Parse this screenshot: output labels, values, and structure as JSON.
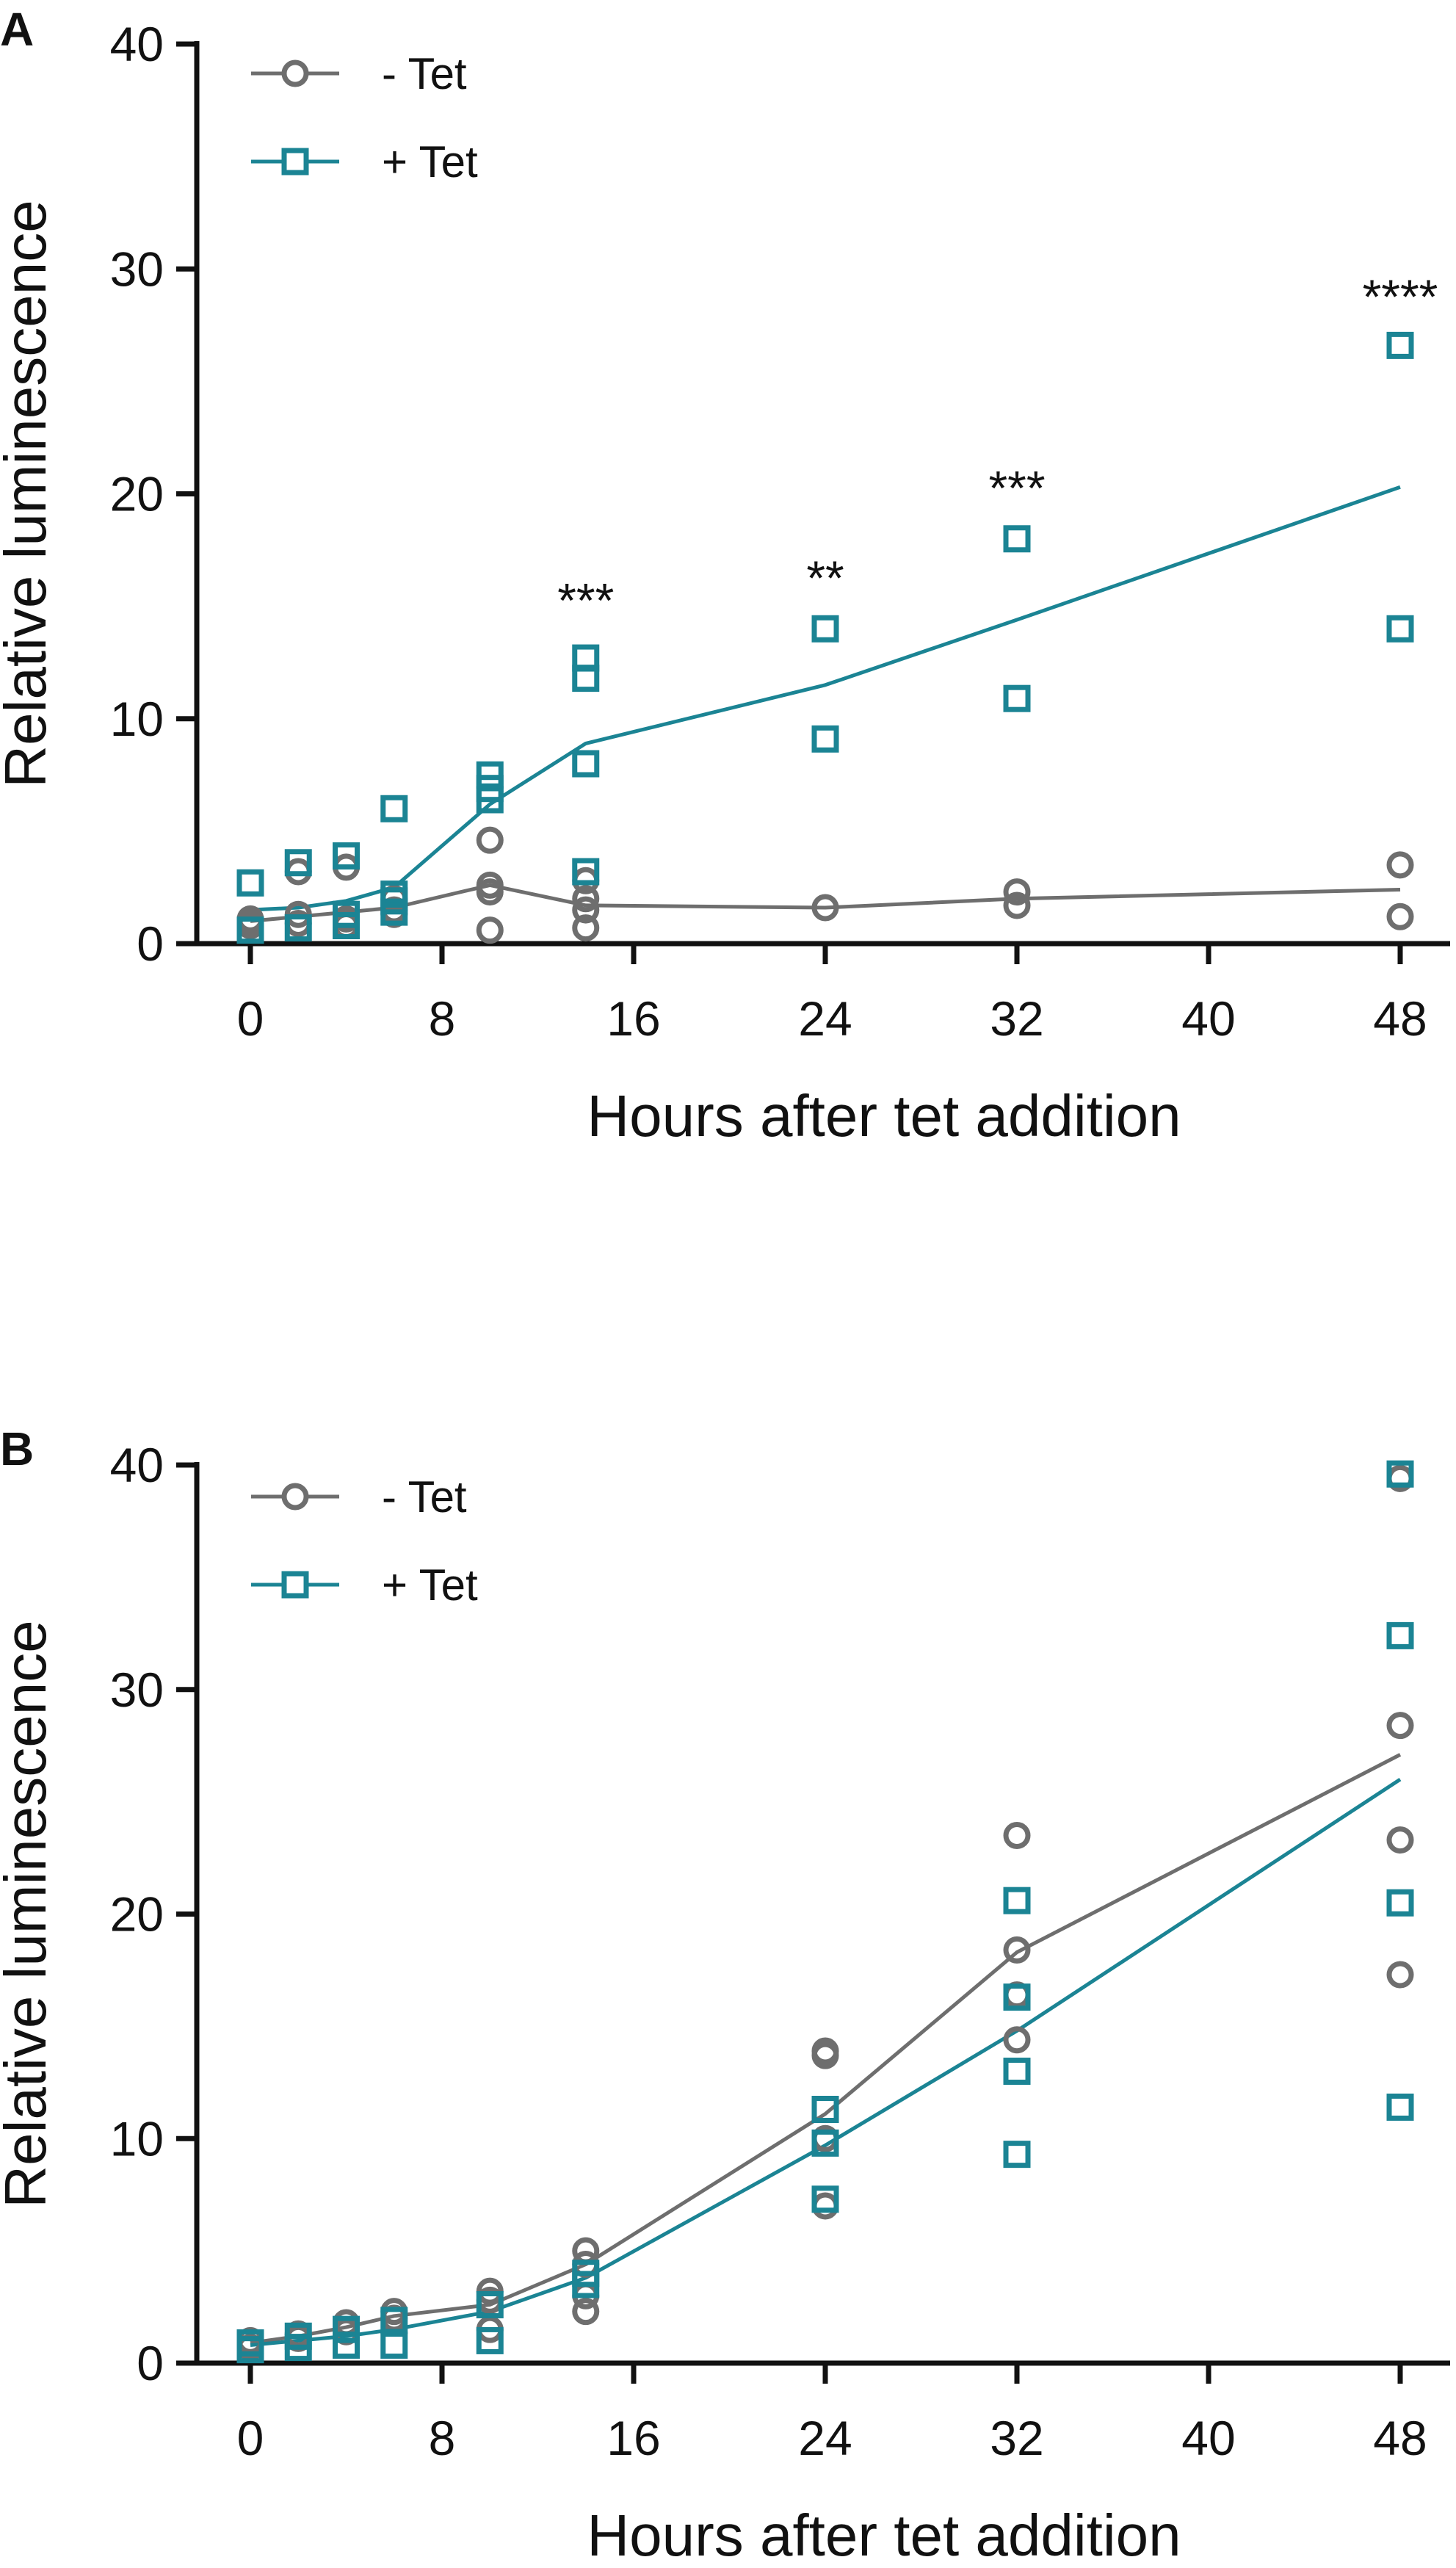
{
  "colors": {
    "minus": "#6e6e6e",
    "plus": "#1b8494",
    "axis": "#111111"
  },
  "chart_data": [
    {
      "panel_label": "A",
      "type": "scatter",
      "xlabel": "Hours after tet addition",
      "ylabel": "Relative luminescence",
      "xlim": [
        -2,
        49
      ],
      "ylim": [
        0,
        40
      ],
      "xticks": [
        0,
        8,
        16,
        24,
        32,
        40,
        48
      ],
      "yticks": [
        0,
        10,
        20,
        30,
        40
      ],
      "legend_position": "top-left",
      "series": [
        {
          "name": "- Tet",
          "marker": "circle",
          "color": "#6e6e6e",
          "points": [
            [
              0,
              0.8
            ],
            [
              0,
              1.0
            ],
            [
              0,
              1.1
            ],
            [
              2,
              0.9
            ],
            [
              2,
              1.3
            ],
            [
              2,
              3.2
            ],
            [
              4,
              0.8
            ],
            [
              4,
              1.1
            ],
            [
              4,
              3.4
            ],
            [
              6,
              1.3
            ],
            [
              6,
              1.5
            ],
            [
              6,
              2.0
            ],
            [
              10,
              0.6
            ],
            [
              10,
              2.3
            ],
            [
              10,
              2.6
            ],
            [
              10,
              4.6
            ],
            [
              14,
              0.7
            ],
            [
              14,
              1.5
            ],
            [
              14,
              2.0
            ],
            [
              14,
              2.8
            ],
            [
              24,
              1.6
            ],
            [
              32,
              1.7
            ],
            [
              32,
              2.3
            ],
            [
              48,
              1.2
            ],
            [
              48,
              3.5
            ]
          ],
          "mean_line": [
            [
              0,
              1.0
            ],
            [
              2,
              1.2
            ],
            [
              4,
              1.4
            ],
            [
              6,
              1.6
            ],
            [
              10,
              2.6
            ],
            [
              14,
              1.7
            ],
            [
              24,
              1.6
            ],
            [
              32,
              2.0
            ],
            [
              48,
              2.4
            ]
          ]
        },
        {
          "name": "+ Tet",
          "marker": "square",
          "color": "#1b8494",
          "points": [
            [
              0,
              0.6
            ],
            [
              0,
              2.7
            ],
            [
              2,
              0.7
            ],
            [
              2,
              3.6
            ],
            [
              4,
              0.8
            ],
            [
              4,
              1.3
            ],
            [
              4,
              3.9
            ],
            [
              6,
              1.4
            ],
            [
              6,
              1.9
            ],
            [
              6,
              2.2
            ],
            [
              6,
              6.0
            ],
            [
              10,
              6.4
            ],
            [
              10,
              6.9
            ],
            [
              10,
              7.5
            ],
            [
              14,
              3.2
            ],
            [
              14,
              8.0
            ],
            [
              14,
              11.8
            ],
            [
              14,
              12.7
            ],
            [
              24,
              9.1
            ],
            [
              24,
              14.0
            ],
            [
              32,
              10.9
            ],
            [
              32,
              18.0
            ],
            [
              48,
              14.0
            ],
            [
              48,
              26.6
            ]
          ],
          "mean_line": [
            [
              0,
              1.5
            ],
            [
              2,
              1.6
            ],
            [
              4,
              1.9
            ],
            [
              6,
              2.5
            ],
            [
              10,
              6.2
            ],
            [
              14,
              8.9
            ],
            [
              24,
              11.5
            ],
            [
              32,
              14.4
            ],
            [
              48,
              20.3
            ]
          ]
        }
      ],
      "annotations": [
        {
          "x": 14,
          "y": 15.3,
          "text": "***"
        },
        {
          "x": 24,
          "y": 16.3,
          "text": "**"
        },
        {
          "x": 32,
          "y": 20.3,
          "text": "***"
        },
        {
          "x": 48,
          "y": 28.8,
          "text": "****"
        }
      ]
    },
    {
      "panel_label": "B",
      "type": "scatter",
      "xlabel": "Hours after tet addition",
      "ylabel": "Relative luminescence",
      "xlim": [
        -2,
        49
      ],
      "ylim": [
        0,
        40
      ],
      "xticks": [
        0,
        8,
        16,
        24,
        32,
        40,
        48
      ],
      "yticks": [
        0,
        10,
        20,
        30,
        40
      ],
      "legend_position": "top-left",
      "series": [
        {
          "name": "- Tet",
          "marker": "circle",
          "color": "#6e6e6e",
          "points": [
            [
              0,
              0.7
            ],
            [
              0,
              1.0
            ],
            [
              2,
              1.1
            ],
            [
              2,
              1.3
            ],
            [
              4,
              1.4
            ],
            [
              4,
              1.8
            ],
            [
              6,
              2.0
            ],
            [
              6,
              2.3
            ],
            [
              10,
              1.5
            ],
            [
              10,
              2.8
            ],
            [
              10,
              3.2
            ],
            [
              14,
              2.3
            ],
            [
              14,
              3.0
            ],
            [
              14,
              4.4
            ],
            [
              14,
              5.0
            ],
            [
              24,
              7.0
            ],
            [
              24,
              10.0
            ],
            [
              24,
              13.7
            ],
            [
              24,
              13.9
            ],
            [
              32,
              14.4
            ],
            [
              32,
              16.4
            ],
            [
              32,
              18.4
            ],
            [
              32,
              23.5
            ],
            [
              48,
              17.3
            ],
            [
              48,
              23.3
            ],
            [
              48,
              28.4
            ],
            [
              48,
              39.4
            ]
          ],
          "mean_line": [
            [
              0,
              0.9
            ],
            [
              2,
              1.2
            ],
            [
              4,
              1.6
            ],
            [
              6,
              2.1
            ],
            [
              10,
              2.6
            ],
            [
              14,
              4.4
            ],
            [
              24,
              11.1
            ],
            [
              32,
              18.3
            ],
            [
              48,
              27.1
            ]
          ]
        },
        {
          "name": "+ Tet",
          "marker": "square",
          "color": "#1b8494",
          "points": [
            [
              0,
              0.6
            ],
            [
              0,
              0.9
            ],
            [
              2,
              0.7
            ],
            [
              2,
              1.2
            ],
            [
              4,
              0.8
            ],
            [
              4,
              1.5
            ],
            [
              6,
              0.8
            ],
            [
              6,
              1.9
            ],
            [
              10,
              1.0
            ],
            [
              10,
              2.6
            ],
            [
              14,
              3.5
            ],
            [
              14,
              4.0
            ],
            [
              24,
              7.3
            ],
            [
              24,
              9.8
            ],
            [
              24,
              11.3
            ],
            [
              32,
              9.3
            ],
            [
              32,
              13.0
            ],
            [
              32,
              16.3
            ],
            [
              32,
              20.6
            ],
            [
              48,
              11.4
            ],
            [
              48,
              20.5
            ],
            [
              48,
              32.4
            ],
            [
              48,
              39.6
            ]
          ],
          "mean_line": [
            [
              0,
              0.8
            ],
            [
              2,
              1.0
            ],
            [
              4,
              1.2
            ],
            [
              6,
              1.5
            ],
            [
              10,
              2.3
            ],
            [
              14,
              3.8
            ],
            [
              24,
              9.7
            ],
            [
              32,
              14.8
            ],
            [
              48,
              26.0
            ]
          ]
        }
      ],
      "annotations": []
    }
  ]
}
